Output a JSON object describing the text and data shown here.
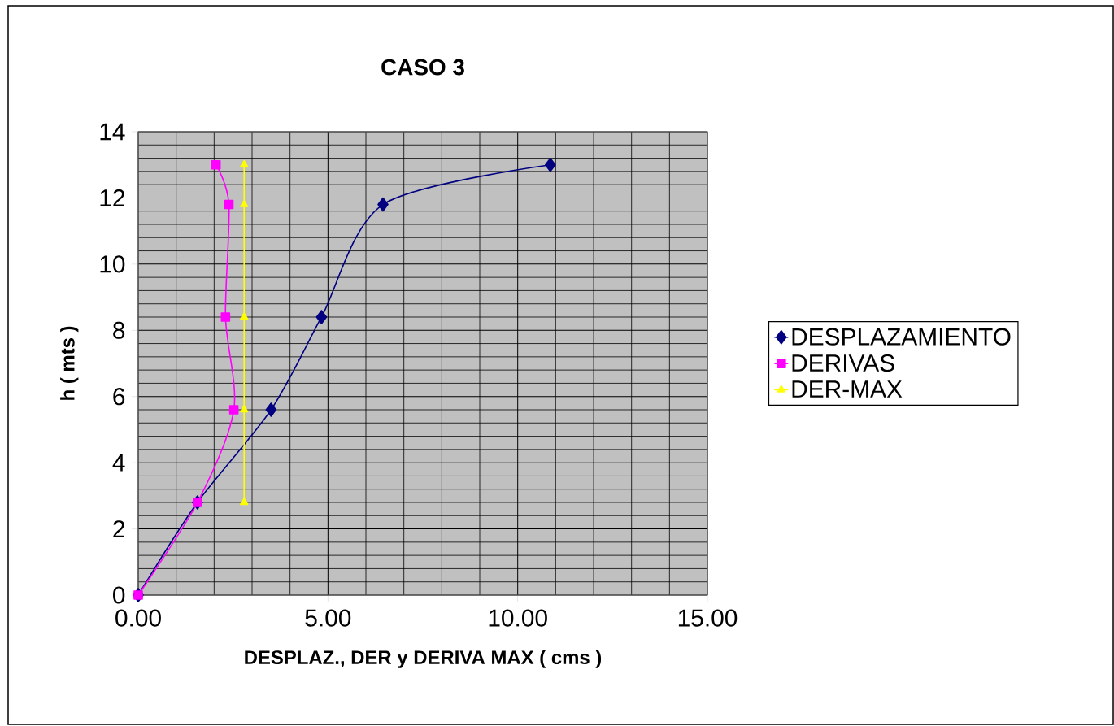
{
  "chart_data": {
    "type": "line",
    "title": "CASO 3",
    "xlabel": "DESPLAZ.,  DER  y   DERIVA MAX  ( cms )",
    "ylabel": "h ( mts )",
    "xlim": [
      0,
      15
    ],
    "ylim": [
      0,
      14
    ],
    "xticks": [
      {
        "value": 0,
        "label": "0.00"
      },
      {
        "value": 5,
        "label": "5.00"
      },
      {
        "value": 10,
        "label": "10.00"
      },
      {
        "value": 15,
        "label": "15.00"
      }
    ],
    "yticks": [
      0,
      2,
      4,
      6,
      8,
      10,
      12,
      14
    ],
    "grid": true,
    "legend": "right",
    "line_style": "solid",
    "series": [
      {
        "name": "DESPLAZAMIENTO",
        "color": "#000080",
        "marker": "diamond",
        "x": [
          0,
          1.56,
          3.5,
          4.83,
          6.45,
          10.86
        ],
        "values": [
          0,
          2.8,
          5.6,
          8.4,
          11.8,
          13.0
        ]
      },
      {
        "name": "DERIVAS",
        "color": "#ff00ff",
        "marker": "square",
        "x": [
          0,
          1.56,
          2.52,
          2.3,
          2.39,
          2.05
        ],
        "values": [
          0,
          2.8,
          5.6,
          8.4,
          11.8,
          13.0
        ]
      },
      {
        "name": "DER-MAX",
        "color": "#ffff00",
        "marker": "triangle",
        "x": [
          2.79,
          2.79,
          2.79,
          2.79,
          2.79
        ],
        "values": [
          2.8,
          5.6,
          8.4,
          11.8,
          13.0
        ]
      }
    ]
  }
}
